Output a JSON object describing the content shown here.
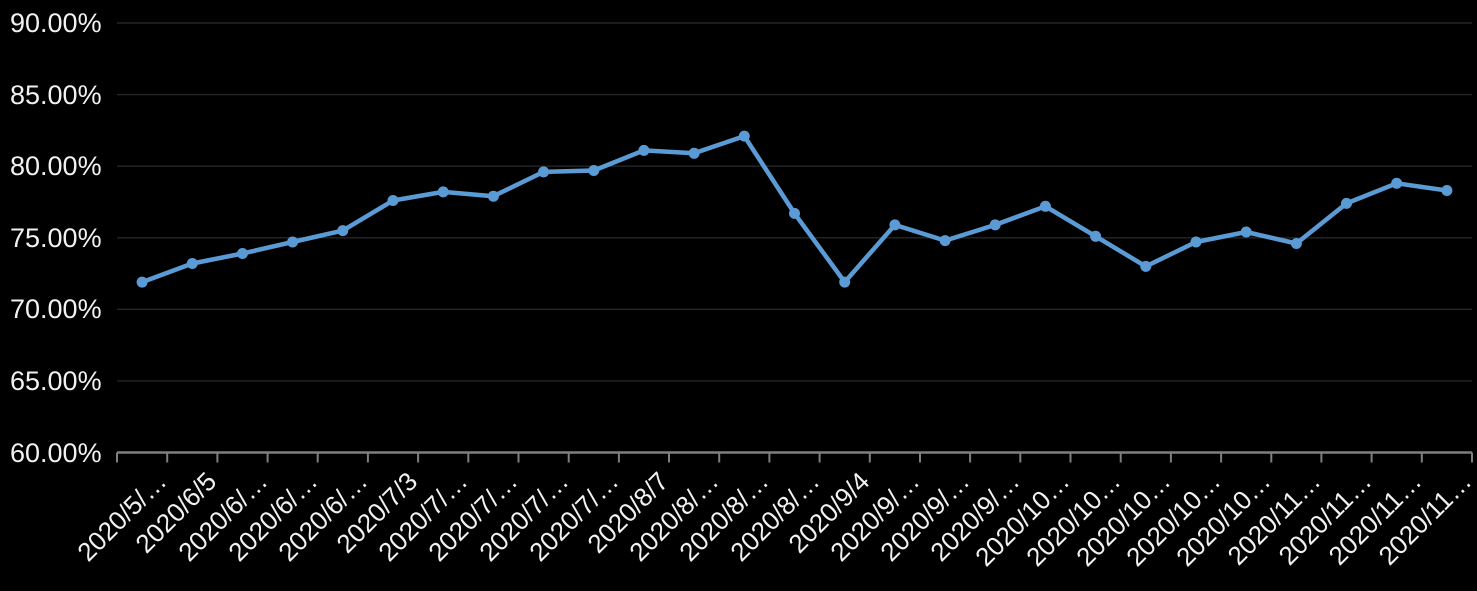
{
  "chart_data": {
    "type": "line",
    "title": "",
    "xlabel": "",
    "ylabel": "",
    "ylim": [
      60,
      90
    ],
    "grid": true,
    "legend": false,
    "marker": "circle",
    "categories": [
      "2020/5/…",
      "2020/6/5",
      "2020/6/…",
      "2020/6/…",
      "2020/6/…",
      "2020/7/3",
      "2020/7/…",
      "2020/7/…",
      "2020/7/…",
      "2020/7/…",
      "2020/8/7",
      "2020/8/…",
      "2020/8/…",
      "2020/8/…",
      "2020/9/4",
      "2020/9/…",
      "2020/9/…",
      "2020/9/…",
      "2020/10…",
      "2020/10…",
      "2020/10…",
      "2020/10…",
      "2020/10…",
      "2020/11…",
      "2020/11…",
      "2020/11…",
      "2020/11…"
    ],
    "values": [
      71.9,
      73.2,
      73.9,
      74.7,
      75.5,
      77.6,
      78.2,
      77.9,
      79.6,
      79.7,
      81.1,
      80.9,
      82.1,
      76.7,
      71.9,
      75.9,
      74.8,
      75.9,
      77.2,
      75.1,
      73.0,
      74.7,
      75.4,
      74.6,
      77.4,
      78.8,
      78.3
    ],
    "y_ticks": [
      {
        "value": 90,
        "label": "90.00%"
      },
      {
        "value": 85,
        "label": "85.00%"
      },
      {
        "value": 80,
        "label": "80.00%"
      },
      {
        "value": 75,
        "label": "75.00%"
      },
      {
        "value": 70,
        "label": "70.00%"
      },
      {
        "value": 65,
        "label": "65.00%"
      },
      {
        "value": 60,
        "label": "60.00%"
      }
    ],
    "colors": {
      "background": "#000000",
      "line": "#5B9BD5",
      "text": "#F1F1F1",
      "gridline": "#262626",
      "axis": "#7F7F7F"
    }
  }
}
